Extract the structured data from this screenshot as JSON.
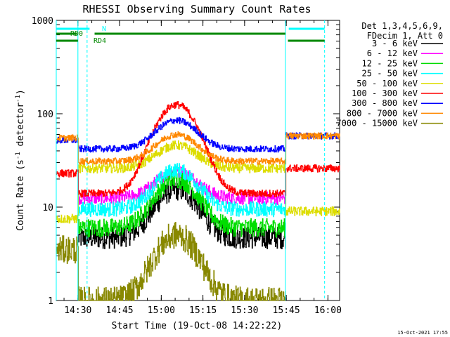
{
  "chart_data": {
    "type": "line",
    "title": "RHESSI Observing Summary Count Rates",
    "xlabel": "Start Time (19-Oct-08 14:22:22)",
    "ylabel_main": "Count Rate (s",
    "ylabel_sup1": "-1",
    "ylabel_mid": " detector",
    "ylabel_sup2": "-1",
    "ylabel_end": ")",
    "yscale": "log",
    "ylim": [
      1,
      1000
    ],
    "xlim_minutes": [
      14.37,
      16.07
    ],
    "x_ticks": [
      {
        "label": "14:30",
        "t": 14.5
      },
      {
        "label": "14:45",
        "t": 14.75
      },
      {
        "label": "15:00",
        "t": 15.0
      },
      {
        "label": "15:15",
        "t": 15.25
      },
      {
        "label": "15:30",
        "t": 15.5
      },
      {
        "label": "15:45",
        "t": 15.75
      },
      {
        "label": "16:00",
        "t": 16.0
      }
    ],
    "y_ticks": [
      {
        "label": "1",
        "v": 1
      },
      {
        "label": "10",
        "v": 10
      },
      {
        "label": "100",
        "v": 100
      },
      {
        "label": "1000",
        "v": 1000
      }
    ],
    "legend_header": [
      "Det 1,3,4,5,6,9,",
      "FDecim 1, Att 0"
    ],
    "legend_position": "right",
    "series": [
      {
        "name": "3 - 6 keV",
        "color": "#000000",
        "pre": 0,
        "low": 4.7,
        "peak": 15.5,
        "post": 0,
        "noise": 0.12
      },
      {
        "name": "6 - 12 keV",
        "color": "#ff00ff",
        "pre": 0,
        "low": 12.5,
        "peak": 24,
        "post": 0,
        "noise": 0.07
      },
      {
        "name": "12 - 25 keV",
        "color": "#00dd00",
        "pre": 0,
        "low": 6,
        "peak": 20,
        "post": 0,
        "noise": 0.1
      },
      {
        "name": "25 - 50 keV",
        "color": "#00ffff",
        "pre": 0,
        "low": 9.5,
        "peak": 25,
        "post": 0,
        "noise": 0.08
      },
      {
        "name": "50 - 100 keV",
        "color": "#dddd00",
        "pre": 7.5,
        "low": 26,
        "peak": 46,
        "post": 9,
        "noise": 0.05
      },
      {
        "name": "100 - 300 keV",
        "color": "#ff0000",
        "pre": 23,
        "low": 14,
        "peak": 125,
        "post": 26,
        "noise": 0.04
      },
      {
        "name": "300 - 800 keV",
        "color": "#0000ff",
        "pre": 52,
        "low": 42,
        "peak": 85,
        "post": 58,
        "noise": 0.035
      },
      {
        "name": "800 - 7000 keV",
        "color": "#ff8800",
        "pre": 55,
        "low": 31,
        "peak": 60,
        "post": 58,
        "noise": 0.035
      },
      {
        "name": "7000 - 15000 keV",
        "color": "#888800",
        "pre": 3.5,
        "low": 1,
        "peak": 5,
        "post": 0,
        "noise": 0.15
      }
    ],
    "flags": [
      {
        "label": "N",
        "color": "#00ffff",
        "segments": [
          [
            14.37,
            14.57
          ],
          [
            15.765,
            15.98
          ]
        ]
      },
      {
        "label": "RD0",
        "color": "#008800",
        "segments": [
          [
            14.37,
            14.495
          ],
          [
            14.6,
            15.745
          ]
        ]
      },
      {
        "label": "RD4",
        "color": "#008800",
        "segments": [
          [
            14.37,
            14.5
          ],
          [
            15.76,
            15.98
          ]
        ]
      }
    ],
    "vlines": [
      {
        "t": 14.37,
        "style": "solid"
      },
      {
        "t": 14.5,
        "style": "solid"
      },
      {
        "t": 14.555,
        "style": "dashed"
      },
      {
        "t": 15.745,
        "style": "solid"
      },
      {
        "t": 15.98,
        "style": "dashed"
      }
    ]
  },
  "footer_timestamp": "15-Oct-2021 17:55"
}
